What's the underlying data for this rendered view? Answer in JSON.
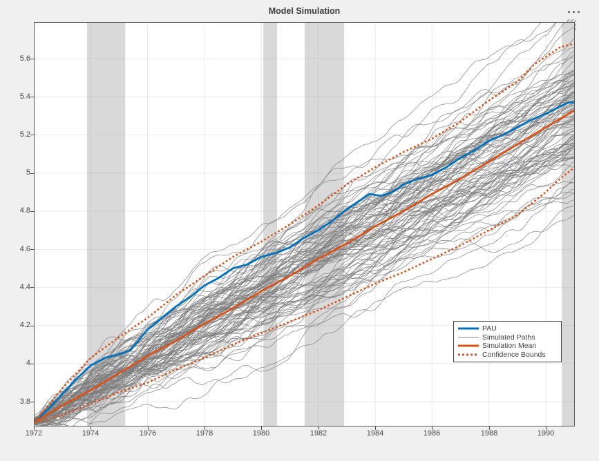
{
  "figure": {
    "title": "Model Simulation",
    "background_color": "#f0f0f0",
    "plot_background_color": "#ffffff",
    "menu_icon": "ellipsis-icon"
  },
  "legend": {
    "position": "bottom-right-inside",
    "items": [
      {
        "label": "PAU",
        "style": "solid-thick",
        "color": "#0072BD"
      },
      {
        "label": "Simulated Paths",
        "style": "solid-thin",
        "color": "#8a8a8a"
      },
      {
        "label": "Simulation Mean",
        "style": "solid-thick",
        "color": "#D95319"
      },
      {
        "label": "Confidence Bounds",
        "style": "dotted-thick",
        "color": "#D95319"
      }
    ]
  },
  "chart_data": {
    "type": "line",
    "title": "Model Simulation",
    "xlabel": "",
    "ylabel": "",
    "xlim": [
      1972,
      1991.02
    ],
    "ylim": [
      3.67,
      5.792
    ],
    "grid": true,
    "grid_color": "#e2e2e2",
    "axis_color": "#5a5a5a",
    "x_ticks": {
      "values": [
        1972,
        1974,
        1976,
        1978,
        1980,
        1982,
        1984,
        1986,
        1988,
        1990
      ],
      "labels": [
        "1972",
        "1974",
        "1976",
        "1978",
        "1980",
        "1982",
        "1984",
        "1986",
        "1988",
        "1990"
      ]
    },
    "y_ticks": {
      "values": [
        3.8,
        4.0,
        4.2,
        4.4,
        4.6,
        4.8,
        5.0,
        5.2,
        5.4,
        5.6
      ],
      "labels": [
        "3.8",
        "4",
        "4.2",
        "4.4",
        "4.6",
        "4.8",
        "5",
        "5.2",
        "5.4",
        "5.6"
      ]
    },
    "recession_bands": {
      "color": "#d9d9d9",
      "intervals": [
        [
          1973.87,
          1975.21
        ],
        [
          1980.07,
          1980.55
        ],
        [
          1981.52,
          1982.91
        ],
        [
          1990.56,
          1991.02
        ]
      ]
    },
    "series": [
      {
        "name": "PAU",
        "color": "#0072BD",
        "width": 2.8,
        "dash": "solid",
        "x": [
          1972,
          1972.5,
          1973,
          1973.5,
          1974,
          1974.5,
          1975,
          1975.4,
          1976,
          1976.5,
          1977,
          1977.5,
          1978,
          1978.5,
          1979,
          1979.5,
          1980,
          1980.5,
          1981,
          1981.5,
          1982,
          1982.5,
          1983,
          1983.5,
          1983.8,
          1984.2,
          1984.6,
          1985,
          1985.5,
          1986,
          1986.5,
          1987,
          1987.5,
          1988,
          1988.5,
          1989,
          1989.5,
          1990,
          1990.5,
          1990.8,
          1991.02
        ],
        "y": [
          3.69,
          3.76,
          3.84,
          3.92,
          3.99,
          4.03,
          4.05,
          4.07,
          4.18,
          4.24,
          4.3,
          4.35,
          4.41,
          4.45,
          4.5,
          4.52,
          4.56,
          4.58,
          4.61,
          4.66,
          4.7,
          4.75,
          4.81,
          4.86,
          4.89,
          4.88,
          4.9,
          4.94,
          4.97,
          4.99,
          5.03,
          5.08,
          5.12,
          5.17,
          5.2,
          5.24,
          5.28,
          5.31,
          5.35,
          5.37,
          5.37
        ]
      },
      {
        "name": "Simulation Mean",
        "color": "#D95319",
        "width": 2.8,
        "dash": "solid",
        "x": [
          1972,
          1973,
          1974,
          1975,
          1976,
          1977,
          1978,
          1979,
          1980,
          1981,
          1982,
          1983,
          1984,
          1985,
          1986,
          1987,
          1988,
          1989,
          1990,
          1991.02
        ],
        "y": [
          3.69,
          3.78,
          3.86,
          3.95,
          4.04,
          4.12,
          4.21,
          4.29,
          4.38,
          4.46,
          4.55,
          4.63,
          4.72,
          4.8,
          4.89,
          4.97,
          5.06,
          5.15,
          5.24,
          5.33
        ]
      },
      {
        "name": "Confidence Bound Upper",
        "color": "#D95319",
        "width": 2.6,
        "dash": "dotted",
        "x": [
          1972,
          1973,
          1974,
          1975,
          1976,
          1977,
          1978,
          1979,
          1980,
          1981,
          1982,
          1983,
          1984,
          1985,
          1986,
          1987,
          1988,
          1989,
          1989.6,
          1990,
          1990.5,
          1991.02
        ],
        "y": [
          3.69,
          3.87,
          4.03,
          4.14,
          4.24,
          4.36,
          4.46,
          4.56,
          4.64,
          4.73,
          4.83,
          4.94,
          5.03,
          5.11,
          5.18,
          5.27,
          5.38,
          5.48,
          5.57,
          5.61,
          5.66,
          5.68
        ]
      },
      {
        "name": "Confidence Bound Lower",
        "color": "#D95319",
        "width": 2.6,
        "dash": "dotted",
        "x": [
          1972,
          1973,
          1974,
          1975,
          1976,
          1977,
          1978,
          1979,
          1980,
          1981,
          1982,
          1983,
          1984,
          1985,
          1986,
          1987,
          1988,
          1989,
          1990,
          1990.5,
          1991.02
        ],
        "y": [
          3.69,
          3.73,
          3.79,
          3.85,
          3.9,
          3.97,
          4.03,
          4.1,
          4.16,
          4.22,
          4.28,
          4.35,
          4.42,
          4.48,
          4.55,
          4.62,
          4.7,
          4.78,
          4.9,
          4.97,
          5.03
        ]
      }
    ],
    "simulated_paths": {
      "name": "Simulated Paths",
      "count": 100,
      "seed": 42,
      "start_year": 1972,
      "end_year": 1991.02,
      "step_years": 0.08333,
      "start_value": 3.69,
      "drift_mean_per_year": 0.0863,
      "drift_sd_per_year": 0.0095,
      "step_noise_sd": 0.013,
      "min_value": 3.655,
      "color": "#7d7d7d",
      "width": 0.75
    }
  }
}
